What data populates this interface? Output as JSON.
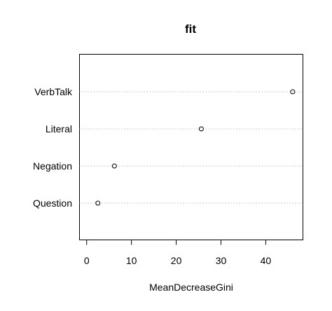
{
  "chart_data": {
    "type": "scatter",
    "title": "fit",
    "xlabel": "MeanDecreaseGini",
    "ylabel": "",
    "categories": [
      "Question",
      "Negation",
      "Literal",
      "VerbTalk"
    ],
    "values": [
      2.5,
      6.2,
      25.6,
      46.0
    ],
    "xlim": [
      -1.6,
      48.3
    ],
    "xticks": [
      0,
      10,
      20,
      30,
      40
    ],
    "xtick_labels": [
      "0",
      "10",
      "20",
      "30",
      "40"
    ],
    "grid": "dotted horizontal lines at each category",
    "legend": "none",
    "colors": {
      "point_stroke": "#000000",
      "grid": "#bdbdbd",
      "axis": "#000000",
      "background": "#ffffff"
    },
    "point_shape": "open-circle"
  }
}
